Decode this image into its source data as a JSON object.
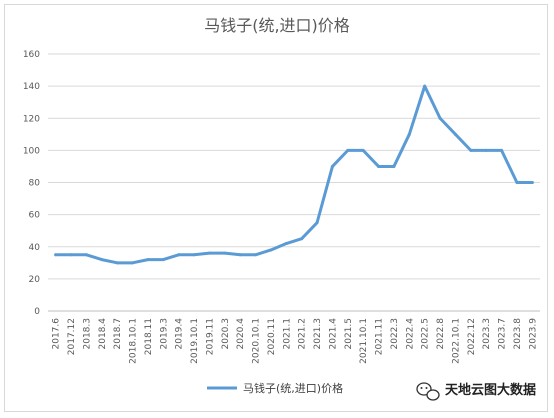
{
  "chart_data": {
    "type": "line",
    "title": "马钱子(统,进口)价格",
    "xlabel": "",
    "ylabel": "",
    "ylim": [
      0,
      160
    ],
    "yticks": [
      0,
      20,
      40,
      60,
      80,
      100,
      120,
      140,
      160
    ],
    "grid": true,
    "legend": "bottom",
    "categories": [
      "2017.6",
      "2017.12",
      "2018.3",
      "2018.4",
      "2018.7",
      "2018.10.1",
      "2018.11",
      "2019.3",
      "2019.4",
      "2019.10.1",
      "2019.11",
      "2020.3",
      "2020.4",
      "2020.10.1",
      "2020.11",
      "2021.1",
      "2021.2",
      "2021.3",
      "2021.4",
      "2021.5",
      "2021.10.1",
      "2021.11",
      "2022.3",
      "2022.4",
      "2022.5",
      "2022.8",
      "2022.10.1",
      "2022.12",
      "2023.3",
      "2023.7",
      "2023.8",
      "2023.9"
    ],
    "series": [
      {
        "name": "马钱子(统,进口)价格",
        "color": "#5b9bd5",
        "values": [
          35,
          35,
          35,
          32,
          30,
          30,
          32,
          32,
          35,
          35,
          36,
          36,
          35,
          35,
          38,
          42,
          45,
          55,
          90,
          100,
          100,
          90,
          90,
          110,
          140,
          120,
          110,
          100,
          100,
          100,
          80,
          80
        ]
      }
    ]
  },
  "watermark": {
    "text": "天地云图大数据",
    "icon": "wechat-icon"
  }
}
